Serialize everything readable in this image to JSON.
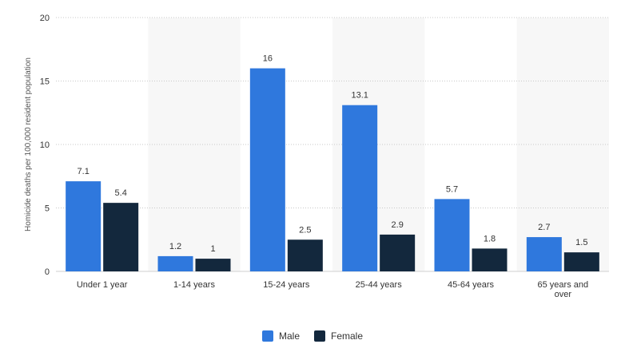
{
  "chart_data": {
    "type": "bar",
    "title": "",
    "xlabel": "",
    "ylabel": "Homicide deaths per 100,000 resident population",
    "categories": [
      "Under 1 year",
      "1-14 years",
      "15-24 years",
      "25-44 years",
      "45-64 years",
      "65 years and over"
    ],
    "series": [
      {
        "name": "Male",
        "color": "#2f78dd",
        "values": [
          7.1,
          1.2,
          16,
          13.1,
          5.7,
          2.7
        ],
        "labels": [
          "7.1",
          "1.2",
          "16",
          "13.1",
          "5.7",
          "2.7"
        ]
      },
      {
        "name": "Female",
        "color": "#13283d",
        "values": [
          5.4,
          1,
          2.5,
          2.9,
          1.8,
          1.5
        ],
        "labels": [
          "5.4",
          "1",
          "2.5",
          "2.9",
          "1.8",
          "1.5"
        ]
      }
    ],
    "ylim": [
      0,
      20
    ],
    "yticks": [
      "0",
      "5",
      "10",
      "15",
      "20"
    ],
    "grid": true,
    "legend_position": "bottom-center"
  }
}
